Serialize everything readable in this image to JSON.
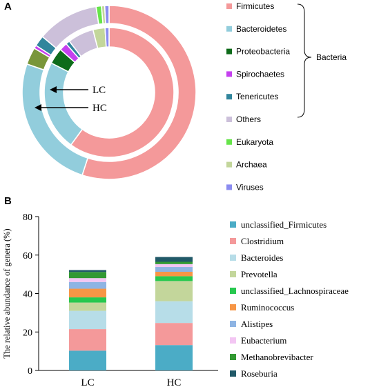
{
  "panel_a_letter": "A",
  "panel_b_letter": "B",
  "chart_data": [
    {
      "type": "donut",
      "rings": [
        {
          "name": "HC",
          "slices": [
            {
              "label": "Firmicutes",
              "value": 55.0,
              "color": "#f4999a"
            },
            {
              "label": "Bacteroidetes",
              "value": 25.3,
              "color": "#92cddc"
            },
            {
              "label": "Proteobacteria",
              "value": 0,
              "color": "#0e6b1a"
            },
            {
              "label": "Archaea",
              "value": 3.2,
              "color": "#79963a"
            },
            {
              "label": "Spirochaetes",
              "value": 0.6,
              "color": "#c540ef"
            },
            {
              "label": "Tenericutes",
              "value": 2.0,
              "color": "#31859c"
            },
            {
              "label": "Others",
              "value": 11.5,
              "color": "#ccc0da"
            },
            {
              "label": "Eukaryota",
              "value": 1.0,
              "color": "#66e44a"
            },
            {
              "label": "Archaea",
              "value": 0.6,
              "color": "#c3d69b"
            },
            {
              "label": "Viruses",
              "value": 0.8,
              "color": "#8b8cf0"
            }
          ]
        },
        {
          "name": "LC",
          "slices": [
            {
              "label": "Firmicutes",
              "value": 60.0,
              "color": "#f4999a"
            },
            {
              "label": "Bacteroidetes",
              "value": 22.5,
              "color": "#92cddc"
            },
            {
              "label": "Proteobacteria",
              "value": 4.0,
              "color": "#0e6b1a"
            },
            {
              "label": "Spirochaetes",
              "value": 2.0,
              "color": "#c540ef"
            },
            {
              "label": "Tenericutes",
              "value": 1.0,
              "color": "#31859c"
            },
            {
              "label": "Others",
              "value": 6.5,
              "color": "#ccc0da"
            },
            {
              "label": "Eukaryota",
              "value": 0,
              "color": "#66e44a"
            },
            {
              "label": "Archaea",
              "value": 3.0,
              "color": "#c3d69b"
            },
            {
              "label": "Viruses",
              "value": 1.0,
              "color": "#8b8cf0"
            }
          ]
        }
      ],
      "ring_labels": [
        "LC",
        "HC"
      ],
      "legend": [
        {
          "label": "Firmicutes",
          "color": "#f4999a"
        },
        {
          "label": "Bacteroidetes",
          "color": "#92cddc"
        },
        {
          "label": "Proteobacteria",
          "color": "#0e6b1a"
        },
        {
          "label": "Spirochaetes",
          "color": "#c540ef"
        },
        {
          "label": "Tenericutes",
          "color": "#31859c"
        },
        {
          "label": "Others",
          "color": "#ccc0da"
        },
        {
          "label": "Eukaryota",
          "color": "#66e44a"
        },
        {
          "label": "Archaea",
          "color": "#c3d69b"
        },
        {
          "label": "Viruses",
          "color": "#8b8cf0"
        }
      ],
      "bracket_label": "Bacteria",
      "legend_position": "right"
    },
    {
      "type": "bar",
      "stacked": true,
      "categories": [
        "LC",
        "HC"
      ],
      "ylabel": "The relative abundance of genera (%)",
      "xlabel": "",
      "ylim": [
        0,
        80
      ],
      "yticks": [
        0,
        20,
        40,
        60,
        80
      ],
      "legend_position": "right",
      "series": [
        {
          "name": "unclassified_Firmicutes",
          "color": "#4bacc6",
          "values": [
            10.3,
            13.2
          ]
        },
        {
          "name": "Clostridium",
          "color": "#f4999a",
          "values": [
            11.2,
            11.5
          ]
        },
        {
          "name": "Bacteroides",
          "color": "#b7dde8",
          "values": [
            9.5,
            11.3
          ]
        },
        {
          "name": "Prevotella",
          "color": "#c3d69b",
          "values": [
            4.3,
            10.5
          ]
        },
        {
          "name": "unclassified_Lachnospiraceae",
          "color": "#27c84f",
          "values": [
            2.7,
            2.5
          ]
        },
        {
          "name": "Ruminococcus",
          "color": "#f79646",
          "values": [
            4.5,
            2.3
          ]
        },
        {
          "name": "Alistipes",
          "color": "#8eb4e3",
          "values": [
            3.5,
            2.5
          ]
        },
        {
          "name": "Eubacterium",
          "color": "#f3c6f3",
          "values": [
            2.0,
            1.5
          ]
        },
        {
          "name": "Methanobrevibacter",
          "color": "#339933",
          "values": [
            3.2,
            1.2
          ]
        },
        {
          "name": "Roseburia",
          "color": "#215968",
          "values": [
            1.0,
            2.5
          ]
        }
      ]
    }
  ]
}
